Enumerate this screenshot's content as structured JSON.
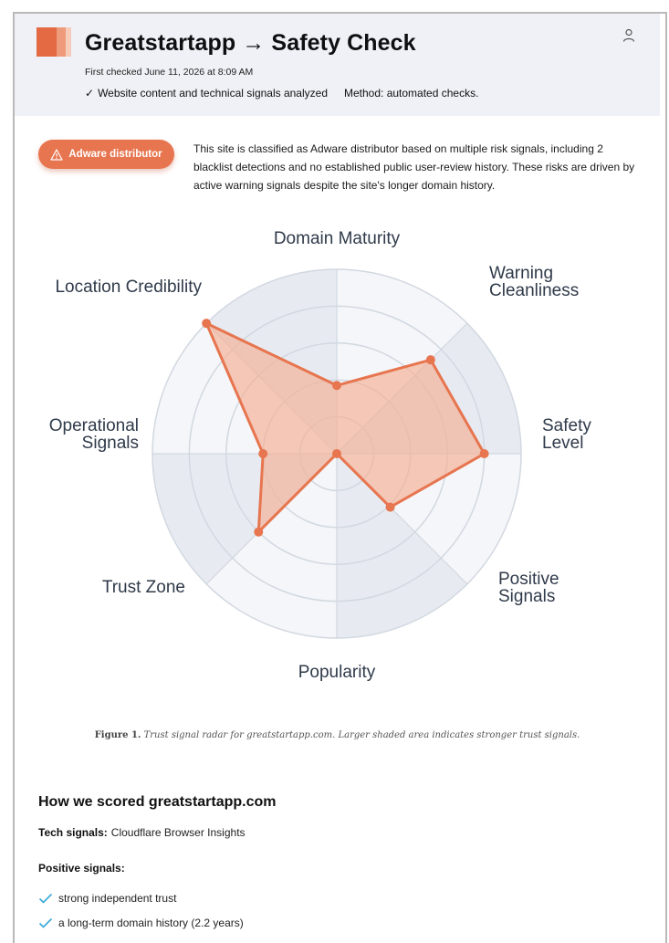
{
  "header": {
    "title": "Greatstartapp → Safety Check",
    "first_checked": "First checked June 11, 2026 at 8:09 AM",
    "analysis_check_icon": "checkmark-icon",
    "analysis_text": "Website content and technical signals analyzed",
    "method_text": "Method: automated checks.",
    "user_icon": "user-icon",
    "logo_colors": [
      "#e36a43",
      "#ee9b7c",
      "#f7cbb9"
    ]
  },
  "verdict": {
    "badge_icon": "warning-triangle-icon",
    "badge_label": "Adware distributor",
    "badge_color": "#e7754f",
    "summary": "This site is classified as Adware distributor based on multiple risk signals, including 2 blacklist detections and no established public user-review history. These risks are driven by active warning signals despite the site's longer domain history."
  },
  "chart_data": {
    "type": "radar",
    "axes": [
      "Domain Maturity",
      "Warning Cleanliness",
      "Safety Level",
      "Positive Signals",
      "Popularity",
      "Trust Zone",
      "Operational Signals",
      "Location Credibility"
    ],
    "values": [
      0.37,
      0.72,
      0.8,
      0.41,
      0.0,
      0.6,
      0.4,
      1.0
    ],
    "scale_max": 1.0,
    "rings": 5,
    "series_color": "#e7754f",
    "fill_color": "#f4b49a"
  },
  "caption": {
    "label": "Figure 1.",
    "text": "Trust signal radar for greatstartapp.com. Larger shaded area indicates stronger trust signals."
  },
  "scoring": {
    "title": "How we scored greatstartapp.com",
    "tech_label": "Tech signals:",
    "tech_value": "Cloudflare Browser Insights",
    "positive_title": "Positive signals:",
    "positive_items": [
      "strong independent trust",
      "a long-term domain history (2.2 years)"
    ],
    "check_color": "#38a9d8"
  }
}
